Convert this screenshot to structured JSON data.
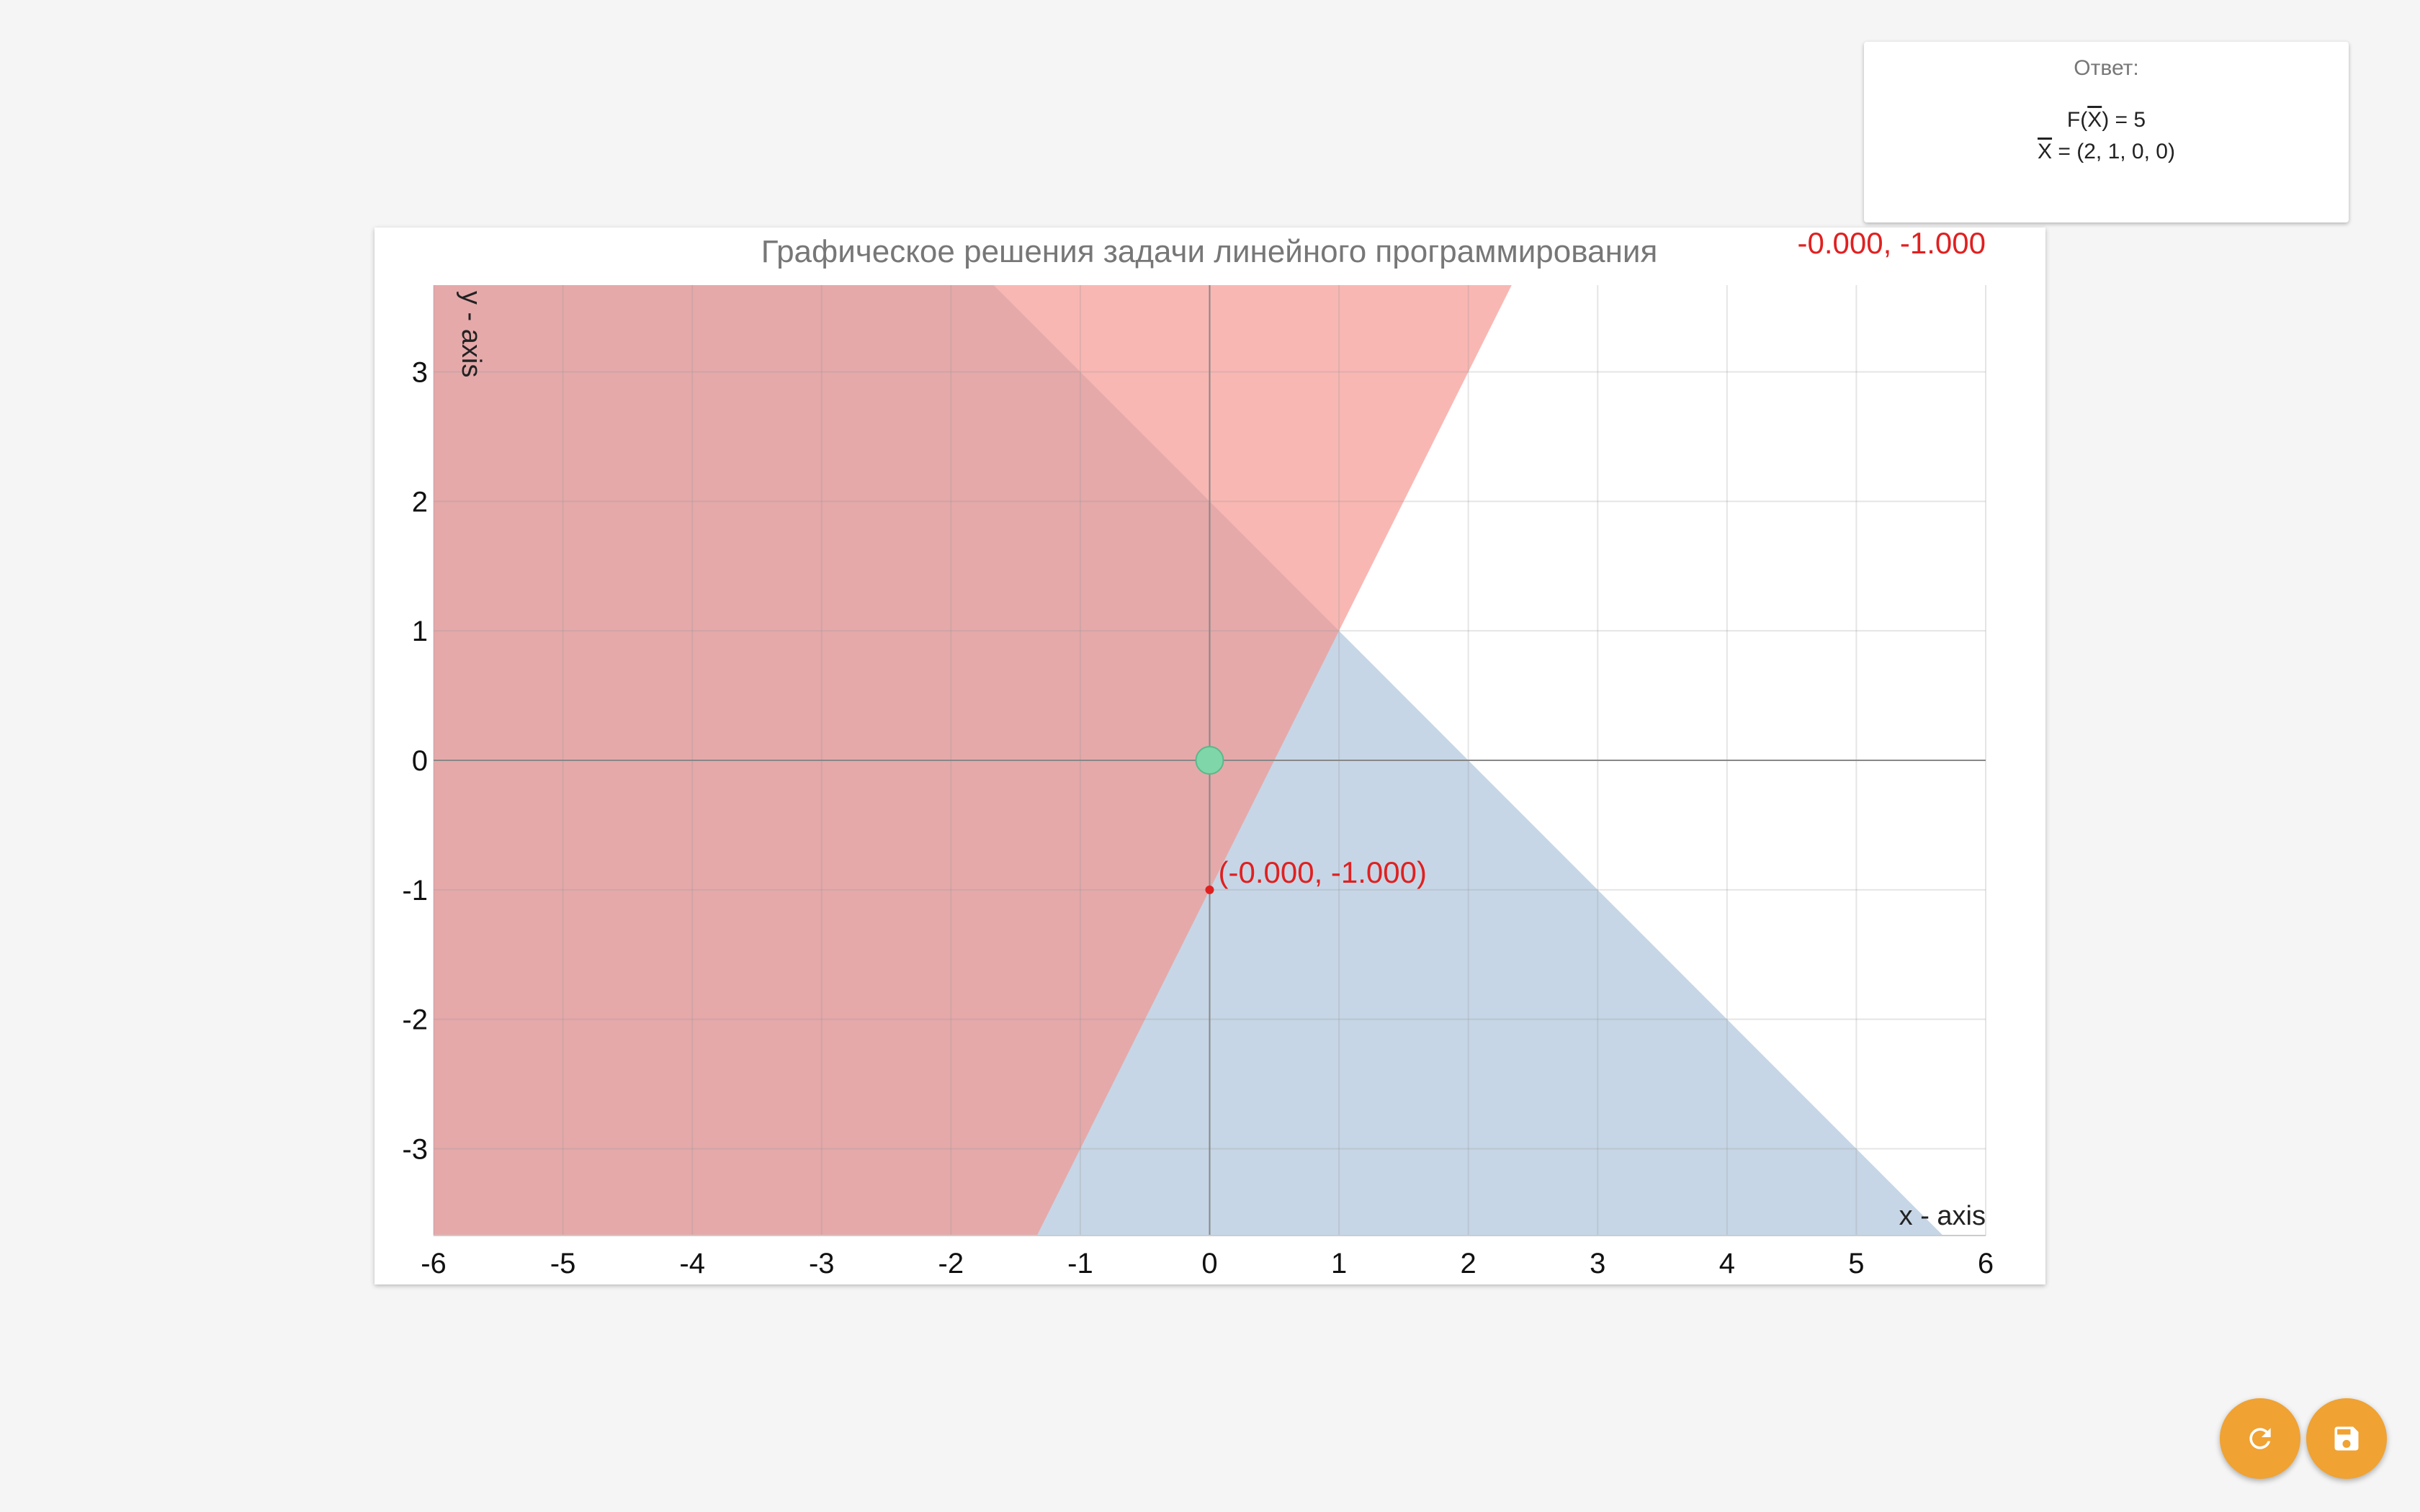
{
  "answer": {
    "title": "Ответ:",
    "f_label": "F(",
    "f_var": "X",
    "f_value": ") = 5",
    "x_var": "X",
    "x_value": " = (2, 1, 0, 0)"
  },
  "cursor_readout": "-0.000, -1.000",
  "chart_data": {
    "type": "area",
    "title": "Графическое решения задачи линейного программирования",
    "xlabel": "x - axis",
    "ylabel": "y - axis",
    "xlim": [
      -6,
      6
    ],
    "ylim": [
      -3.67,
      3.67
    ],
    "x_ticks": [
      -6,
      -5,
      -4,
      -3,
      -2,
      -1,
      0,
      1,
      2,
      3,
      4,
      5,
      6
    ],
    "y_ticks": [
      -3,
      -2,
      -1,
      0,
      1,
      2,
      3
    ],
    "grid": true,
    "regions": [
      {
        "boundary": "x + y = 2",
        "side": "x + y <= 2",
        "color": "#b8cce0",
        "opacity": 0.8
      },
      {
        "boundary": "2x - y = 1",
        "side": "2x - y <= 1",
        "color": "#f6918a",
        "opacity": 0.65
      }
    ],
    "points": [
      {
        "x": 0,
        "y": 0,
        "color": "#7fd6a8"
      },
      {
        "x": 0,
        "y": -1,
        "color": "#e02020",
        "label": "(-0.000, -1.000)"
      }
    ]
  },
  "buttons": {
    "refresh_icon": "refresh-icon",
    "save_icon": "floppy-disk-icon",
    "accent": "#f0a232"
  }
}
